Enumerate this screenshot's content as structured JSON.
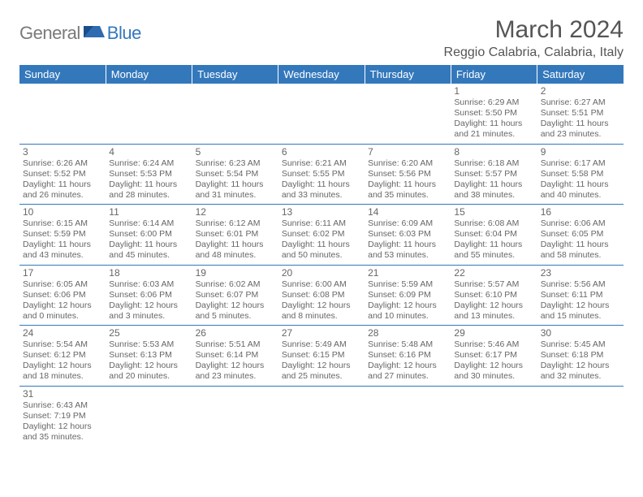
{
  "brand": {
    "part1": "General",
    "part2": "Blue"
  },
  "title": "March 2024",
  "location": "Reggio Calabria, Calabria, Italy",
  "colors": {
    "header_bg": "#3478bc",
    "header_text": "#ffffff",
    "text": "#555555",
    "cell_text": "#666666",
    "rule": "#3478bc"
  },
  "day_headers": [
    "Sunday",
    "Monday",
    "Tuesday",
    "Wednesday",
    "Thursday",
    "Friday",
    "Saturday"
  ],
  "weeks": [
    [
      null,
      null,
      null,
      null,
      null,
      {
        "n": "1",
        "sr": "Sunrise: 6:29 AM",
        "ss": "Sunset: 5:50 PM",
        "d1": "Daylight: 11 hours",
        "d2": "and 21 minutes."
      },
      {
        "n": "2",
        "sr": "Sunrise: 6:27 AM",
        "ss": "Sunset: 5:51 PM",
        "d1": "Daylight: 11 hours",
        "d2": "and 23 minutes."
      }
    ],
    [
      {
        "n": "3",
        "sr": "Sunrise: 6:26 AM",
        "ss": "Sunset: 5:52 PM",
        "d1": "Daylight: 11 hours",
        "d2": "and 26 minutes."
      },
      {
        "n": "4",
        "sr": "Sunrise: 6:24 AM",
        "ss": "Sunset: 5:53 PM",
        "d1": "Daylight: 11 hours",
        "d2": "and 28 minutes."
      },
      {
        "n": "5",
        "sr": "Sunrise: 6:23 AM",
        "ss": "Sunset: 5:54 PM",
        "d1": "Daylight: 11 hours",
        "d2": "and 31 minutes."
      },
      {
        "n": "6",
        "sr": "Sunrise: 6:21 AM",
        "ss": "Sunset: 5:55 PM",
        "d1": "Daylight: 11 hours",
        "d2": "and 33 minutes."
      },
      {
        "n": "7",
        "sr": "Sunrise: 6:20 AM",
        "ss": "Sunset: 5:56 PM",
        "d1": "Daylight: 11 hours",
        "d2": "and 35 minutes."
      },
      {
        "n": "8",
        "sr": "Sunrise: 6:18 AM",
        "ss": "Sunset: 5:57 PM",
        "d1": "Daylight: 11 hours",
        "d2": "and 38 minutes."
      },
      {
        "n": "9",
        "sr": "Sunrise: 6:17 AM",
        "ss": "Sunset: 5:58 PM",
        "d1": "Daylight: 11 hours",
        "d2": "and 40 minutes."
      }
    ],
    [
      {
        "n": "10",
        "sr": "Sunrise: 6:15 AM",
        "ss": "Sunset: 5:59 PM",
        "d1": "Daylight: 11 hours",
        "d2": "and 43 minutes."
      },
      {
        "n": "11",
        "sr": "Sunrise: 6:14 AM",
        "ss": "Sunset: 6:00 PM",
        "d1": "Daylight: 11 hours",
        "d2": "and 45 minutes."
      },
      {
        "n": "12",
        "sr": "Sunrise: 6:12 AM",
        "ss": "Sunset: 6:01 PM",
        "d1": "Daylight: 11 hours",
        "d2": "and 48 minutes."
      },
      {
        "n": "13",
        "sr": "Sunrise: 6:11 AM",
        "ss": "Sunset: 6:02 PM",
        "d1": "Daylight: 11 hours",
        "d2": "and 50 minutes."
      },
      {
        "n": "14",
        "sr": "Sunrise: 6:09 AM",
        "ss": "Sunset: 6:03 PM",
        "d1": "Daylight: 11 hours",
        "d2": "and 53 minutes."
      },
      {
        "n": "15",
        "sr": "Sunrise: 6:08 AM",
        "ss": "Sunset: 6:04 PM",
        "d1": "Daylight: 11 hours",
        "d2": "and 55 minutes."
      },
      {
        "n": "16",
        "sr": "Sunrise: 6:06 AM",
        "ss": "Sunset: 6:05 PM",
        "d1": "Daylight: 11 hours",
        "d2": "and 58 minutes."
      }
    ],
    [
      {
        "n": "17",
        "sr": "Sunrise: 6:05 AM",
        "ss": "Sunset: 6:06 PM",
        "d1": "Daylight: 12 hours",
        "d2": "and 0 minutes."
      },
      {
        "n": "18",
        "sr": "Sunrise: 6:03 AM",
        "ss": "Sunset: 6:06 PM",
        "d1": "Daylight: 12 hours",
        "d2": "and 3 minutes."
      },
      {
        "n": "19",
        "sr": "Sunrise: 6:02 AM",
        "ss": "Sunset: 6:07 PM",
        "d1": "Daylight: 12 hours",
        "d2": "and 5 minutes."
      },
      {
        "n": "20",
        "sr": "Sunrise: 6:00 AM",
        "ss": "Sunset: 6:08 PM",
        "d1": "Daylight: 12 hours",
        "d2": "and 8 minutes."
      },
      {
        "n": "21",
        "sr": "Sunrise: 5:59 AM",
        "ss": "Sunset: 6:09 PM",
        "d1": "Daylight: 12 hours",
        "d2": "and 10 minutes."
      },
      {
        "n": "22",
        "sr": "Sunrise: 5:57 AM",
        "ss": "Sunset: 6:10 PM",
        "d1": "Daylight: 12 hours",
        "d2": "and 13 minutes."
      },
      {
        "n": "23",
        "sr": "Sunrise: 5:56 AM",
        "ss": "Sunset: 6:11 PM",
        "d1": "Daylight: 12 hours",
        "d2": "and 15 minutes."
      }
    ],
    [
      {
        "n": "24",
        "sr": "Sunrise: 5:54 AM",
        "ss": "Sunset: 6:12 PM",
        "d1": "Daylight: 12 hours",
        "d2": "and 18 minutes."
      },
      {
        "n": "25",
        "sr": "Sunrise: 5:53 AM",
        "ss": "Sunset: 6:13 PM",
        "d1": "Daylight: 12 hours",
        "d2": "and 20 minutes."
      },
      {
        "n": "26",
        "sr": "Sunrise: 5:51 AM",
        "ss": "Sunset: 6:14 PM",
        "d1": "Daylight: 12 hours",
        "d2": "and 23 minutes."
      },
      {
        "n": "27",
        "sr": "Sunrise: 5:49 AM",
        "ss": "Sunset: 6:15 PM",
        "d1": "Daylight: 12 hours",
        "d2": "and 25 minutes."
      },
      {
        "n": "28",
        "sr": "Sunrise: 5:48 AM",
        "ss": "Sunset: 6:16 PM",
        "d1": "Daylight: 12 hours",
        "d2": "and 27 minutes."
      },
      {
        "n": "29",
        "sr": "Sunrise: 5:46 AM",
        "ss": "Sunset: 6:17 PM",
        "d1": "Daylight: 12 hours",
        "d2": "and 30 minutes."
      },
      {
        "n": "30",
        "sr": "Sunrise: 5:45 AM",
        "ss": "Sunset: 6:18 PM",
        "d1": "Daylight: 12 hours",
        "d2": "and 32 minutes."
      }
    ],
    [
      {
        "n": "31",
        "sr": "Sunrise: 6:43 AM",
        "ss": "Sunset: 7:19 PM",
        "d1": "Daylight: 12 hours",
        "d2": "and 35 minutes."
      },
      null,
      null,
      null,
      null,
      null,
      null
    ]
  ]
}
